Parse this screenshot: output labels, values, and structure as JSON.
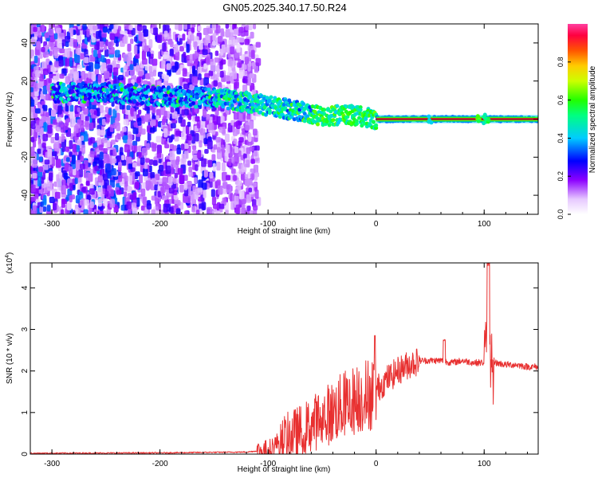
{
  "title": "GN05.2025.340.17.50.R24",
  "chart_data": [
    {
      "type": "heatmap",
      "xlabel": "Height of straight line (km)",
      "ylabel": "Frequency (Hz)",
      "xlim": [
        -320,
        150
      ],
      "ylim": [
        -50,
        50
      ],
      "xticks": [
        -300,
        -200,
        -100,
        0,
        100
      ],
      "yticks": [
        -40,
        -20,
        0,
        20,
        40
      ],
      "colorbar": {
        "label": "Normalized spectral amplitude",
        "range": [
          0,
          1
        ],
        "ticks": [
          0.0,
          0.2,
          0.4,
          0.6,
          0.8
        ]
      },
      "ridge": {
        "x": [
          -300,
          -250,
          -200,
          -150,
          -120,
          -100,
          -80,
          -60,
          -50,
          -40,
          -30,
          -20,
          -10,
          0,
          50,
          100,
          150
        ],
        "y": [
          14,
          14,
          12,
          11,
          9,
          7,
          5,
          3,
          1,
          2,
          2,
          2,
          1,
          0,
          0,
          0,
          0
        ]
      },
      "grid": false
    },
    {
      "type": "line",
      "xlabel": "Height of straight line (km)",
      "ylabel": "SNR (10 * v/v)",
      "yscale_label": "(x10",
      "yscale_exp": "4",
      "xlim": [
        -320,
        150
      ],
      "ylim": [
        0,
        4.6
      ],
      "xticks": [
        -300,
        -200,
        -100,
        0,
        100
      ],
      "yticks": [
        0,
        1,
        2,
        3,
        4
      ],
      "series": [
        {
          "color": "#e83030",
          "x": [
            -320,
            -200,
            -120,
            -100,
            -90,
            -80,
            -70,
            -60,
            -50,
            -40,
            -30,
            -20,
            -10,
            0,
            10,
            20,
            30,
            40,
            50,
            60,
            70,
            80,
            90,
            100,
            105,
            110,
            120,
            130,
            140,
            150
          ],
          "y": [
            0.02,
            0.03,
            0.05,
            0.1,
            0.3,
            0.45,
            0.55,
            0.7,
            0.9,
            1.0,
            1.2,
            1.3,
            1.4,
            1.55,
            1.8,
            2.0,
            2.15,
            2.25,
            2.25,
            2.25,
            2.2,
            2.25,
            2.2,
            2.2,
            2.5,
            2.2,
            2.15,
            2.15,
            2.1,
            2.1
          ]
        }
      ],
      "grid": false
    }
  ]
}
